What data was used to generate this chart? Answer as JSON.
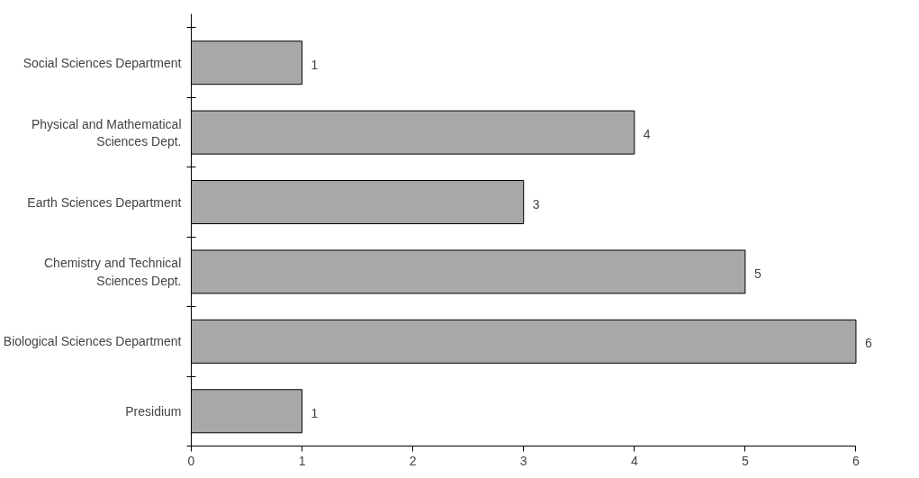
{
  "chart_data": {
    "type": "bar",
    "orientation": "horizontal",
    "categories": [
      "Social Sciences Department",
      "Physical and Mathematical\nSciences Dept.",
      "Earth Sciences Department",
      "Chemistry and Technical\nSciences Dept.",
      "Biological Sciences Department",
      "Presidium"
    ],
    "values": [
      1,
      4,
      3,
      5,
      6,
      1
    ],
    "color": "#a8a8a8",
    "xlim": [
      0,
      6
    ],
    "xticks": [
      0,
      1,
      2,
      3,
      4,
      5,
      6
    ],
    "data_labels": true,
    "grid": false
  }
}
